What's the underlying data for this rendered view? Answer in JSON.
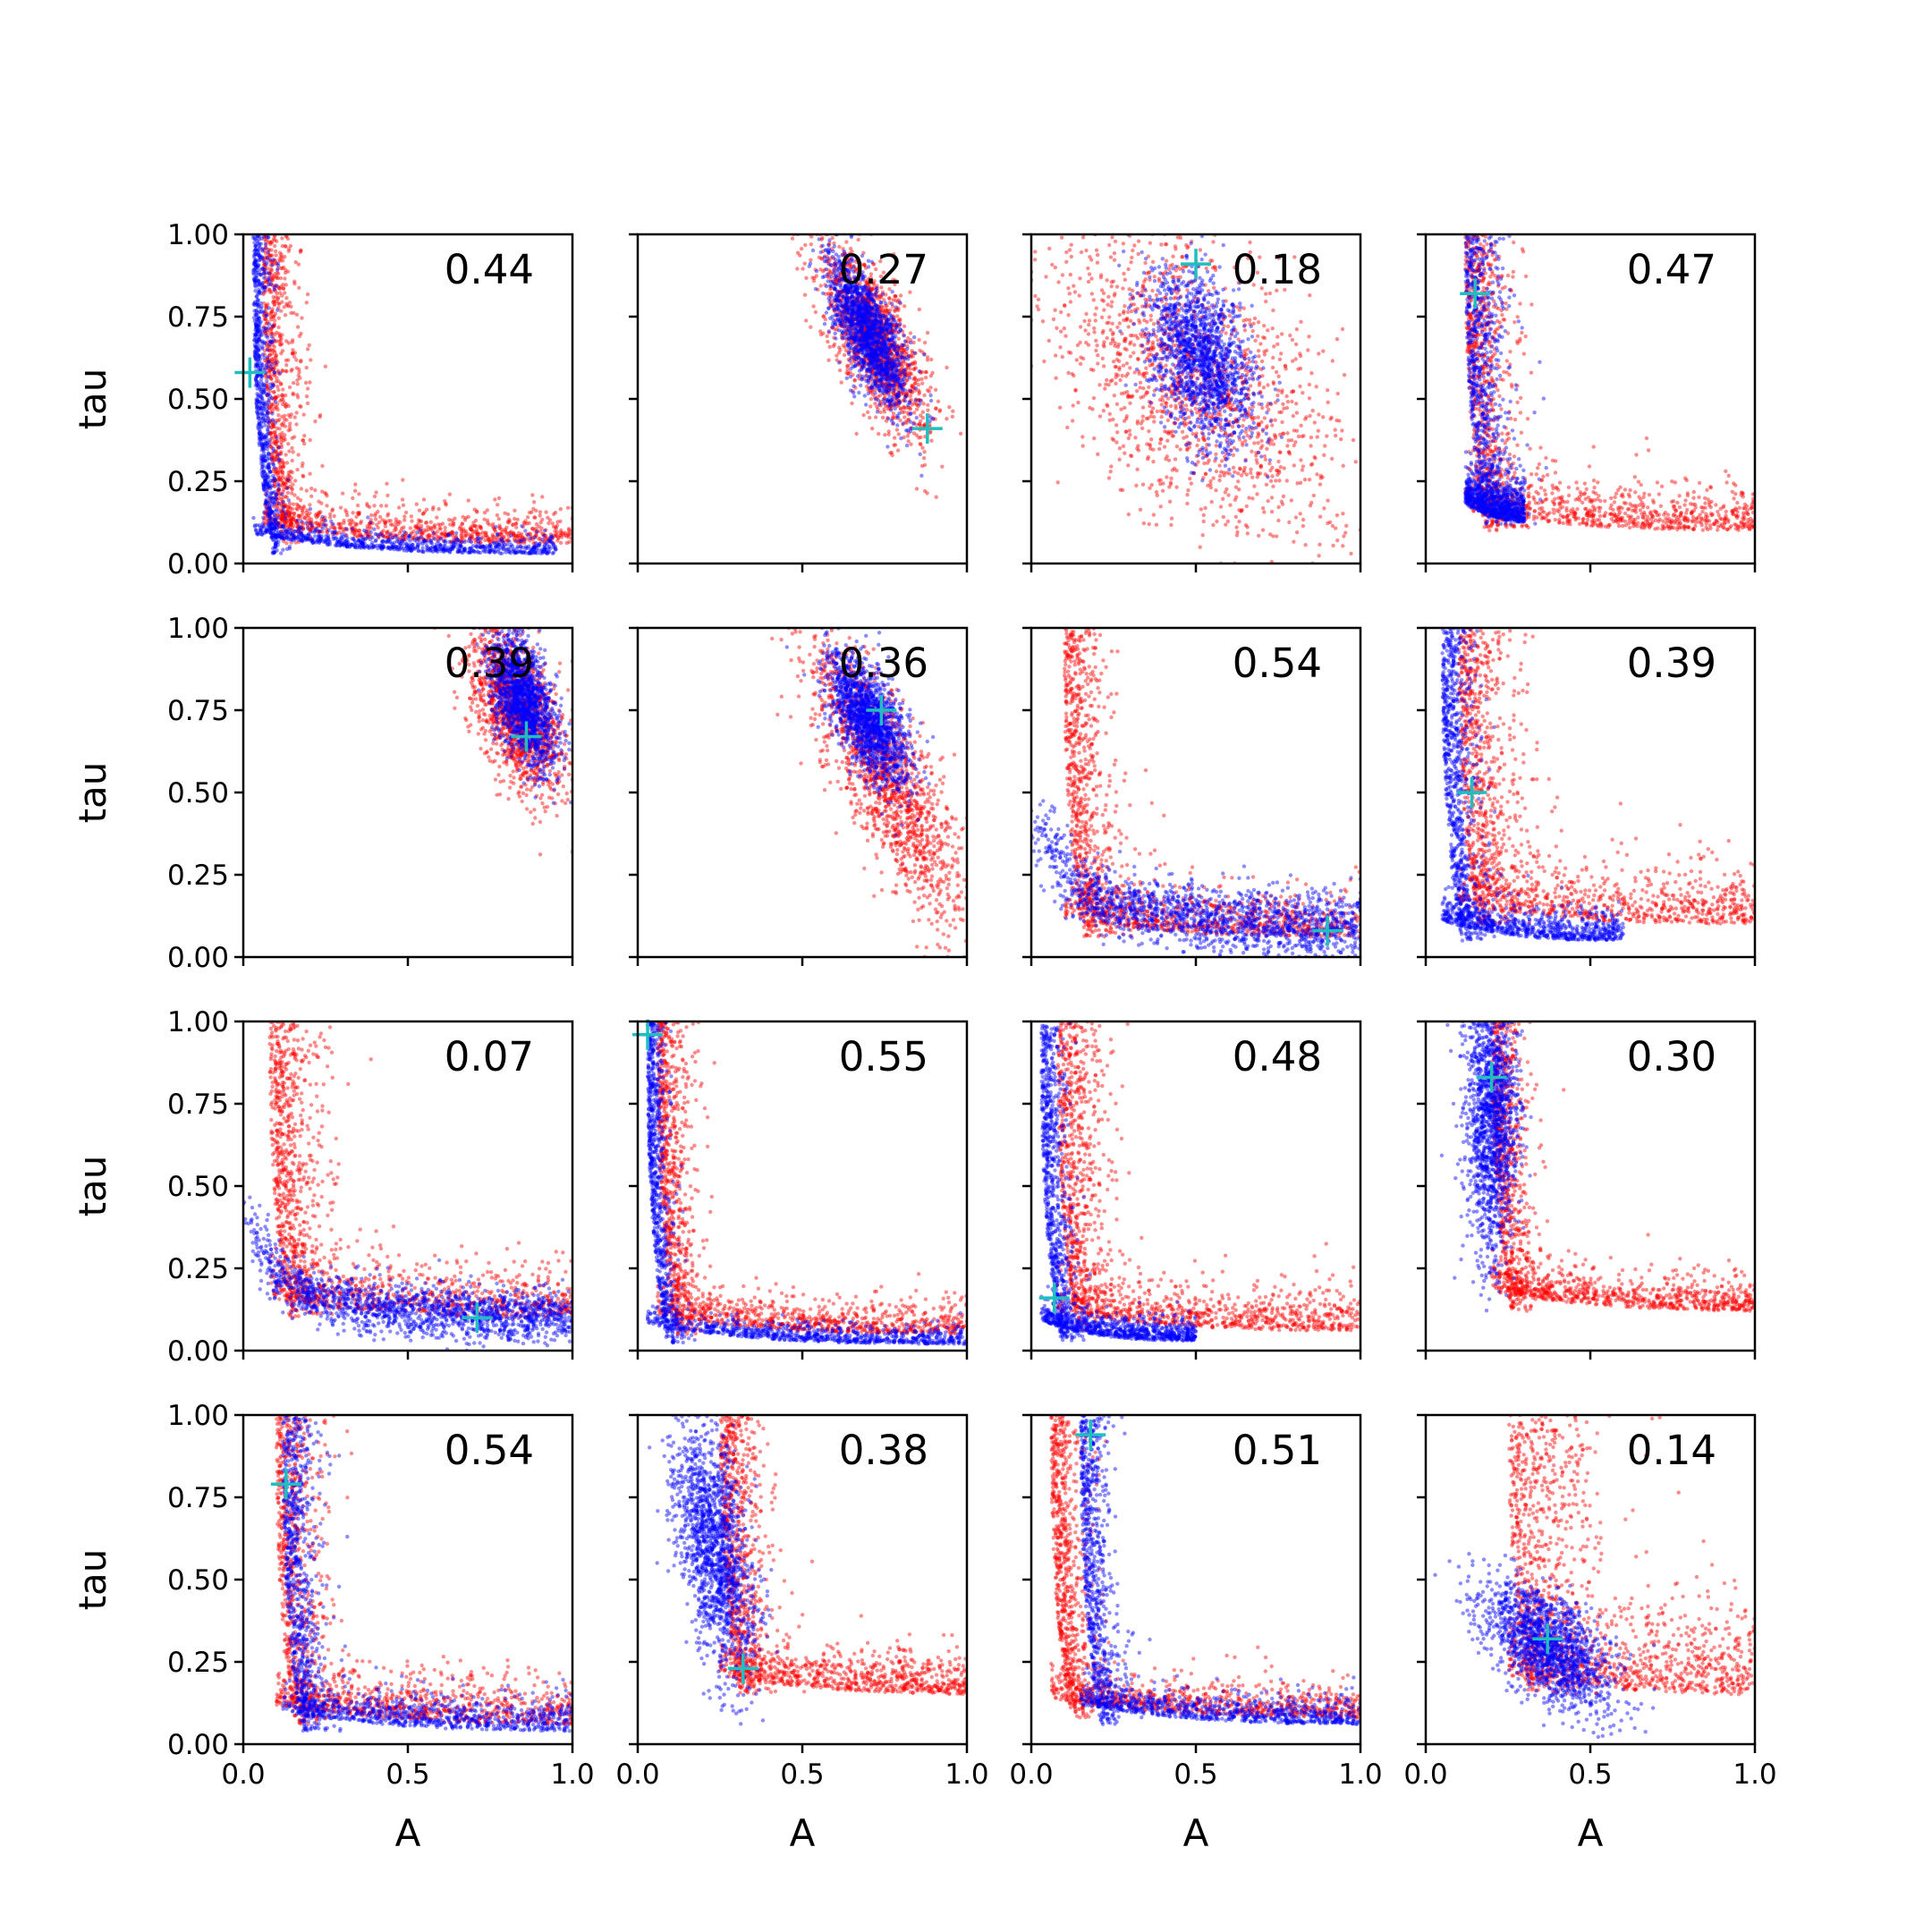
{
  "chart_data": {
    "type": "scatter",
    "layout": {
      "rows": 4,
      "cols": 4,
      "sharex": true,
      "sharey": true
    },
    "xlabel": "A",
    "ylabel": "tau",
    "xlim": [
      0.0,
      1.0
    ],
    "ylim": [
      0.0,
      1.0
    ],
    "xticks": [
      "0.0",
      "0.5",
      "1.0"
    ],
    "yticks": [
      "0.00",
      "0.25",
      "0.50",
      "0.75",
      "1.00"
    ],
    "series_colors": {
      "posterior_a": "#ff0000",
      "posterior_b": "#0000ff",
      "truth_marker": "#1fbfbf"
    },
    "panels": [
      {
        "value": "0.44",
        "truth": [
          0.02,
          0.58
        ],
        "red": {
          "shape": "L",
          "ca": 0.06,
          "ct": 0.06,
          "len_a": 1.0,
          "len_t": 1.0,
          "spread": 0.06
        },
        "blue": {
          "shape": "L",
          "ca": 0.03,
          "ct": 0.03,
          "len_a": 0.95,
          "len_t": 1.0,
          "spread": 0.03
        }
      },
      {
        "value": "0.27",
        "truth": [
          0.88,
          0.41
        ],
        "red": {
          "shape": "blob",
          "ca": 0.72,
          "ct": 0.68,
          "sa": 0.08,
          "st": 0.14,
          "rho": -0.7
        },
        "blue": {
          "shape": "blob",
          "ca": 0.7,
          "ct": 0.7,
          "sa": 0.06,
          "st": 0.11,
          "rho": -0.7
        }
      },
      {
        "value": "0.18",
        "truth": [
          0.5,
          0.91
        ],
        "red": {
          "shape": "blob",
          "ca": 0.5,
          "ct": 0.55,
          "sa": 0.22,
          "st": 0.24,
          "rho": -0.5
        },
        "blue": {
          "shape": "blob",
          "ca": 0.52,
          "ct": 0.62,
          "sa": 0.08,
          "st": 0.13,
          "rho": -0.4
        }
      },
      {
        "value": "0.47",
        "truth": [
          0.15,
          0.82
        ],
        "red": {
          "shape": "L",
          "ca": 0.12,
          "ct": 0.1,
          "len_a": 1.0,
          "len_t": 1.0,
          "spread": 0.08
        },
        "blue": {
          "shape": "L",
          "ca": 0.12,
          "ct": 0.12,
          "len_a": 0.3,
          "len_t": 1.0,
          "spread": 0.07
        }
      },
      {
        "value": "0.39",
        "truth": [
          0.86,
          0.67
        ],
        "red": {
          "shape": "blob",
          "ca": 0.83,
          "ct": 0.75,
          "sa": 0.07,
          "st": 0.12,
          "rho": -0.5
        },
        "blue": {
          "shape": "blob",
          "ca": 0.85,
          "ct": 0.78,
          "sa": 0.05,
          "st": 0.1,
          "rho": -0.5
        }
      },
      {
        "value": "0.36",
        "truth": [
          0.74,
          0.75
        ],
        "red": {
          "shape": "blob",
          "ca": 0.75,
          "ct": 0.55,
          "sa": 0.12,
          "st": 0.22,
          "rho": -0.8
        },
        "blue": {
          "shape": "blob",
          "ca": 0.7,
          "ct": 0.72,
          "sa": 0.06,
          "st": 0.1,
          "rho": -0.6
        }
      },
      {
        "value": "0.54",
        "truth": [
          0.9,
          0.08
        ],
        "red": {
          "shape": "L",
          "ca": 0.1,
          "ct": 0.06,
          "len_a": 1.0,
          "len_t": 1.0,
          "spread": 0.08
        },
        "blue": {
          "shape": "curve",
          "ca": 0.2,
          "ct": 0.07,
          "len_a": 1.0,
          "len_t": 0.7,
          "spread": 0.05
        }
      },
      {
        "value": "0.39",
        "truth": [
          0.14,
          0.5
        ],
        "red": {
          "shape": "L",
          "ca": 0.1,
          "ct": 0.1,
          "len_a": 1.0,
          "len_t": 1.0,
          "spread": 0.1
        },
        "blue": {
          "shape": "L",
          "ca": 0.05,
          "ct": 0.05,
          "len_a": 0.6,
          "len_t": 1.0,
          "spread": 0.05
        }
      },
      {
        "value": "0.07",
        "truth": [
          0.71,
          0.1
        ],
        "red": {
          "shape": "L",
          "ca": 0.08,
          "ct": 0.1,
          "len_a": 1.0,
          "len_t": 1.0,
          "spread": 0.09
        },
        "blue": {
          "shape": "curve",
          "ca": 0.4,
          "ct": 0.08,
          "len_a": 1.0,
          "len_t": 0.6,
          "spread": 0.04
        }
      },
      {
        "value": "0.55",
        "truth": [
          0.03,
          0.96
        ],
        "red": {
          "shape": "L",
          "ca": 0.06,
          "ct": 0.05,
          "len_a": 1.0,
          "len_t": 1.0,
          "spread": 0.06
        },
        "blue": {
          "shape": "L",
          "ca": 0.03,
          "ct": 0.02,
          "len_a": 1.0,
          "len_t": 1.0,
          "spread": 0.03
        }
      },
      {
        "value": "0.48",
        "truth": [
          0.07,
          0.16
        ],
        "red": {
          "shape": "L",
          "ca": 0.08,
          "ct": 0.06,
          "len_a": 1.0,
          "len_t": 1.0,
          "spread": 0.08
        },
        "blue": {
          "shape": "L",
          "ca": 0.03,
          "ct": 0.03,
          "len_a": 0.5,
          "len_t": 1.0,
          "spread": 0.04
        }
      },
      {
        "value": "0.30",
        "truth": [
          0.2,
          0.83
        ],
        "red": {
          "shape": "L",
          "ca": 0.2,
          "ct": 0.12,
          "len_a": 1.0,
          "len_t": 1.0,
          "spread": 0.06
        },
        "blue": {
          "shape": "blob",
          "ca": 0.2,
          "ct": 0.7,
          "sa": 0.04,
          "st": 0.2,
          "rho": 0.0
        }
      },
      {
        "value": "0.54",
        "truth": [
          0.13,
          0.79
        ],
        "red": {
          "shape": "L",
          "ca": 0.1,
          "ct": 0.06,
          "len_a": 1.0,
          "len_t": 1.0,
          "spread": 0.08
        },
        "blue": {
          "shape": "L",
          "ca": 0.12,
          "ct": 0.04,
          "len_a": 1.0,
          "len_t": 1.0,
          "spread": 0.06
        }
      },
      {
        "value": "0.38",
        "truth": [
          0.32,
          0.23
        ],
        "red": {
          "shape": "L",
          "ca": 0.25,
          "ct": 0.15,
          "len_a": 1.0,
          "len_t": 1.0,
          "spread": 0.07
        },
        "blue": {
          "shape": "blob",
          "ca": 0.23,
          "ct": 0.6,
          "sa": 0.06,
          "st": 0.2,
          "rho": -0.5
        }
      },
      {
        "value": "0.51",
        "truth": [
          0.18,
          0.94
        ],
        "red": {
          "shape": "L",
          "ca": 0.06,
          "ct": 0.08,
          "len_a": 1.0,
          "len_t": 1.0,
          "spread": 0.06
        },
        "blue": {
          "shape": "L",
          "ca": 0.15,
          "ct": 0.06,
          "len_a": 1.0,
          "len_t": 1.0,
          "spread": 0.05
        }
      },
      {
        "value": "0.14",
        "truth": [
          0.37,
          0.32
        ],
        "red": {
          "shape": "L",
          "ca": 0.25,
          "ct": 0.15,
          "len_a": 1.0,
          "len_t": 1.0,
          "spread": 0.15
        },
        "blue": {
          "shape": "blob",
          "ca": 0.37,
          "ct": 0.3,
          "sa": 0.1,
          "st": 0.1,
          "rho": -0.6
        }
      }
    ]
  }
}
